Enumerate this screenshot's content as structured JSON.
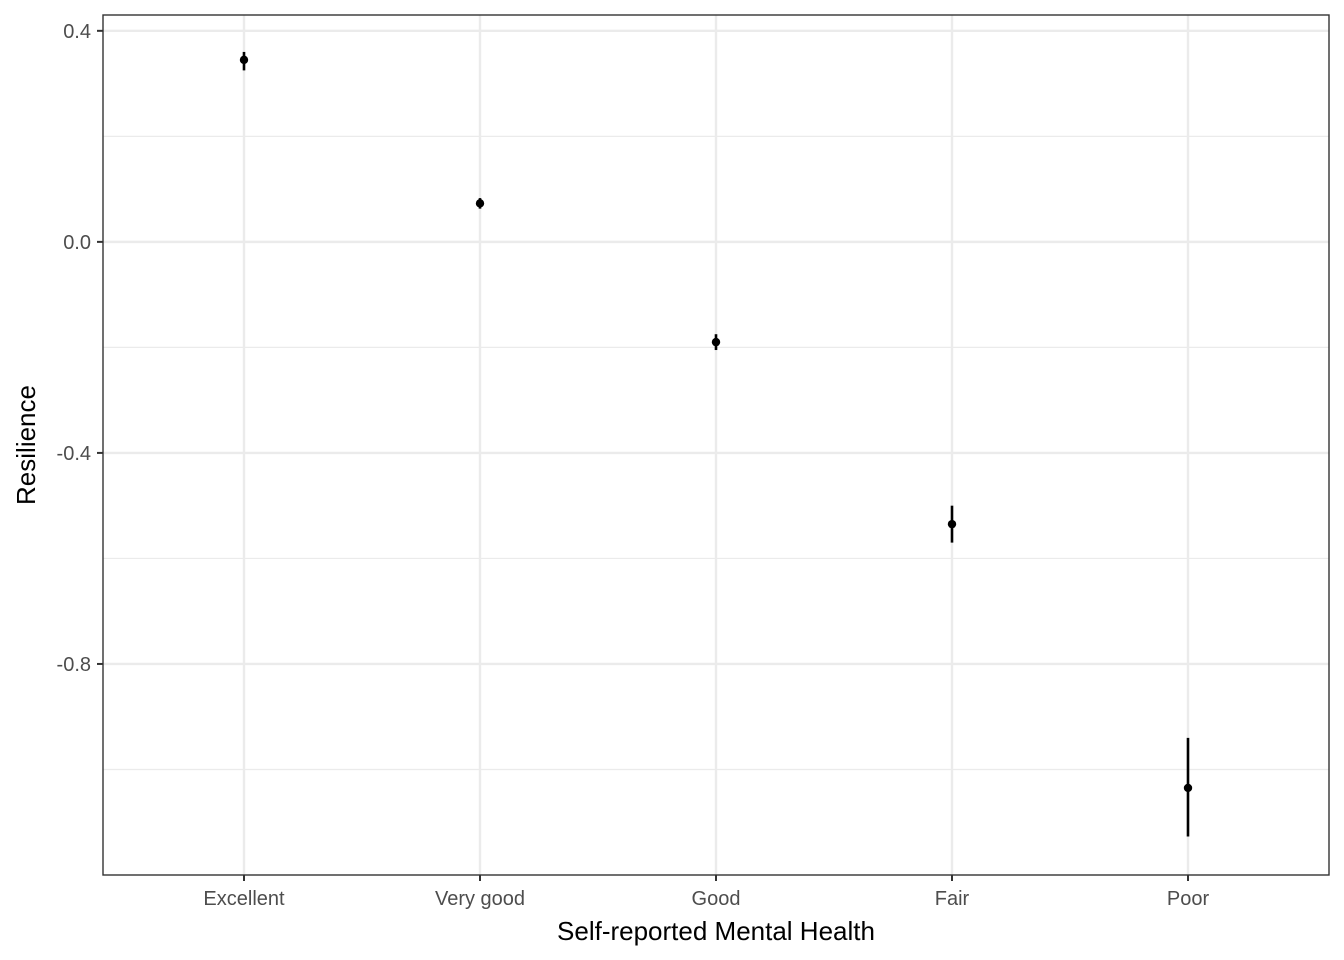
{
  "chart_data": {
    "type": "scatter",
    "title": "",
    "xlabel": "Self-reported Mental Health",
    "ylabel": "Resilience",
    "categories": [
      "Excellent",
      "Very good",
      "Good",
      "Fair",
      "Poor"
    ],
    "values": [
      0.345,
      0.073,
      -0.19,
      -0.535,
      -1.035
    ],
    "error_low": [
      0.325,
      0.063,
      -0.205,
      -0.57,
      -1.127
    ],
    "error_high": [
      0.36,
      0.083,
      -0.175,
      -0.5,
      -0.94
    ],
    "ylim": [
      -1.2,
      0.43
    ],
    "yticks": [
      0.4,
      0.0,
      -0.4,
      -0.8
    ],
    "ytick_labels": [
      "0.4",
      "0.0",
      "-0.4",
      "-0.8"
    ],
    "grid": true,
    "legend": "none",
    "colors": {
      "points": "#000000",
      "grid": "#ebebeb",
      "border": "#333333"
    }
  }
}
